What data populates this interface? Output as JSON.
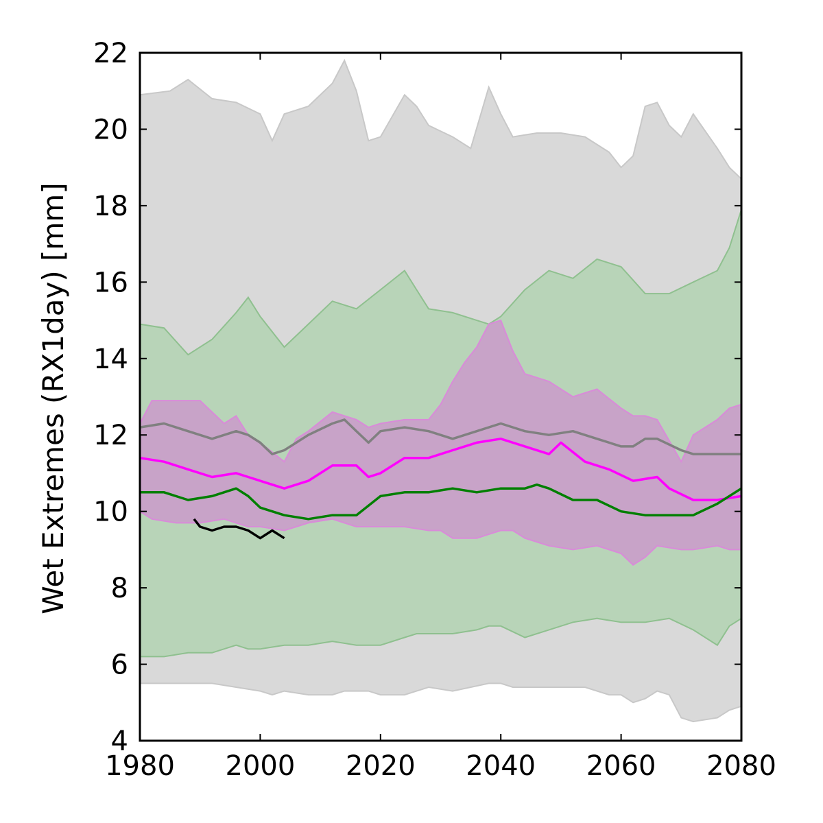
{
  "chart_data": {
    "type": "area",
    "xlabel": "",
    "ylabel": "Wet Extremes (RX1day) [mm]",
    "xlim": [
      1980,
      2080
    ],
    "ylim": [
      4,
      22
    ],
    "xticks": [
      1980,
      2000,
      2020,
      2040,
      2060,
      2080
    ],
    "yticks": [
      4,
      6,
      8,
      10,
      12,
      14,
      16,
      18,
      20,
      22
    ],
    "grid": false,
    "legend": "none",
    "bands": [
      {
        "color": "#d9d9d9",
        "edge_color": "#c8c8c8",
        "x": [
          1980,
          1985,
          1988,
          1992,
          1996,
          2000,
          2002,
          2004,
          2008,
          2012,
          2014,
          2016,
          2018,
          2020,
          2024,
          2026,
          2028,
          2032,
          2035,
          2038,
          2040,
          2042,
          2046,
          2050,
          2054,
          2058,
          2060,
          2062,
          2064,
          2066,
          2068,
          2070,
          2072,
          2076,
          2078,
          2080
        ],
        "upper": [
          20.9,
          21.0,
          21.3,
          20.8,
          20.7,
          20.4,
          19.7,
          20.4,
          20.6,
          21.2,
          21.8,
          21.0,
          19.7,
          19.8,
          20.9,
          20.6,
          20.1,
          19.8,
          19.5,
          21.1,
          20.4,
          19.8,
          19.9,
          19.9,
          19.8,
          19.4,
          19.0,
          19.3,
          20.6,
          20.7,
          20.1,
          19.8,
          20.4,
          19.5,
          19.0,
          18.7
        ],
        "lower": [
          5.5,
          5.5,
          5.5,
          5.5,
          5.4,
          5.3,
          5.2,
          5.3,
          5.2,
          5.2,
          5.3,
          5.3,
          5.3,
          5.2,
          5.2,
          5.3,
          5.4,
          5.3,
          5.4,
          5.5,
          5.5,
          5.4,
          5.4,
          5.4,
          5.4,
          5.2,
          5.2,
          5.0,
          5.1,
          5.3,
          5.2,
          4.6,
          4.5,
          4.6,
          4.8,
          4.9
        ]
      },
      {
        "color": "#b8d4b8",
        "edge_color": "#8fc08f",
        "x": [
          1980,
          1984,
          1988,
          1992,
          1996,
          1998,
          2000,
          2004,
          2008,
          2012,
          2016,
          2020,
          2024,
          2026,
          2028,
          2032,
          2036,
          2038,
          2040,
          2044,
          2048,
          2052,
          2056,
          2060,
          2064,
          2068,
          2072,
          2076,
          2078,
          2080
        ],
        "upper": [
          14.9,
          14.8,
          14.1,
          14.5,
          15.2,
          15.6,
          15.1,
          14.3,
          14.9,
          15.5,
          15.3,
          15.8,
          16.3,
          15.8,
          15.3,
          15.2,
          15.0,
          14.9,
          15.1,
          15.8,
          16.3,
          16.1,
          16.6,
          16.4,
          15.7,
          15.7,
          16.0,
          16.3,
          16.9,
          17.9
        ],
        "lower": [
          6.2,
          6.2,
          6.3,
          6.3,
          6.5,
          6.4,
          6.4,
          6.5,
          6.5,
          6.6,
          6.5,
          6.5,
          6.7,
          6.8,
          6.8,
          6.8,
          6.9,
          7.0,
          7.0,
          6.7,
          6.9,
          7.1,
          7.2,
          7.1,
          7.1,
          7.2,
          6.9,
          6.5,
          7.0,
          7.2
        ]
      },
      {
        "color": "#c8a3c8",
        "edge_color": "#d98bd9",
        "x": [
          1980,
          1982,
          1986,
          1990,
          1994,
          1996,
          1998,
          2000,
          2004,
          2006,
          2008,
          2012,
          2016,
          2018,
          2020,
          2024,
          2028,
          2030,
          2032,
          2034,
          2036,
          2038,
          2040,
          2042,
          2044,
          2048,
          2052,
          2056,
          2060,
          2062,
          2064,
          2066,
          2070,
          2072,
          2076,
          2078,
          2080
        ],
        "upper": [
          12.3,
          12.9,
          12.9,
          12.9,
          12.3,
          12.5,
          12.0,
          11.8,
          11.3,
          11.9,
          12.1,
          12.6,
          12.4,
          12.2,
          12.3,
          12.4,
          12.4,
          12.8,
          13.4,
          13.9,
          14.3,
          14.9,
          15.0,
          14.2,
          13.6,
          13.4,
          13.0,
          13.2,
          12.7,
          12.5,
          12.5,
          12.4,
          11.3,
          12.0,
          12.4,
          12.7,
          12.8
        ],
        "lower": [
          10.0,
          9.8,
          9.7,
          9.7,
          9.8,
          9.7,
          9.6,
          9.6,
          9.5,
          9.6,
          9.7,
          9.8,
          9.6,
          9.6,
          9.6,
          9.6,
          9.5,
          9.5,
          9.3,
          9.3,
          9.3,
          9.4,
          9.5,
          9.5,
          9.3,
          9.1,
          9.0,
          9.1,
          8.9,
          8.6,
          8.8,
          9.1,
          9.0,
          9.0,
          9.1,
          9.0,
          9.0
        ]
      }
    ],
    "series": [
      {
        "color": "#808080",
        "x": [
          1980,
          1984,
          1988,
          1992,
          1996,
          1998,
          2000,
          2002,
          2004,
          2008,
          2012,
          2014,
          2016,
          2018,
          2020,
          2024,
          2028,
          2032,
          2036,
          2040,
          2044,
          2048,
          2052,
          2056,
          2060,
          2062,
          2064,
          2066,
          2070,
          2072,
          2076,
          2080
        ],
        "values": [
          12.2,
          12.3,
          12.1,
          11.9,
          12.1,
          12.0,
          11.8,
          11.5,
          11.6,
          12.0,
          12.3,
          12.4,
          12.1,
          11.8,
          12.1,
          12.2,
          12.1,
          11.9,
          12.1,
          12.3,
          12.1,
          12.0,
          12.1,
          11.9,
          11.7,
          11.7,
          11.9,
          11.9,
          11.6,
          11.5,
          11.5,
          11.5
        ]
      },
      {
        "color": "#ff00ff",
        "x": [
          1980,
          1984,
          1988,
          1992,
          1996,
          1998,
          2000,
          2004,
          2008,
          2012,
          2016,
          2018,
          2020,
          2024,
          2028,
          2032,
          2036,
          2040,
          2044,
          2048,
          2050,
          2054,
          2058,
          2062,
          2066,
          2068,
          2072,
          2076,
          2080
        ],
        "values": [
          11.4,
          11.3,
          11.1,
          10.9,
          11.0,
          10.9,
          10.8,
          10.6,
          10.8,
          11.2,
          11.2,
          10.9,
          11.0,
          11.4,
          11.4,
          11.6,
          11.8,
          11.9,
          11.7,
          11.5,
          11.8,
          11.3,
          11.1,
          10.8,
          10.9,
          10.6,
          10.3,
          10.3,
          10.4
        ]
      },
      {
        "color": "#007f00",
        "x": [
          1980,
          1984,
          1988,
          1992,
          1996,
          1998,
          2000,
          2004,
          2008,
          2012,
          2016,
          2020,
          2024,
          2028,
          2032,
          2036,
          2040,
          2044,
          2046,
          2048,
          2052,
          2056,
          2060,
          2064,
          2068,
          2072,
          2076,
          2080
        ],
        "values": [
          10.5,
          10.5,
          10.3,
          10.4,
          10.6,
          10.4,
          10.1,
          9.9,
          9.8,
          9.9,
          9.9,
          10.4,
          10.5,
          10.5,
          10.6,
          10.5,
          10.6,
          10.6,
          10.7,
          10.6,
          10.3,
          10.3,
          10.0,
          9.9,
          9.9,
          9.9,
          10.2,
          10.6
        ]
      },
      {
        "color": "#000000",
        "x": [
          1989,
          1990,
          1992,
          1994,
          1996,
          1998,
          2000,
          2002,
          2004
        ],
        "values": [
          9.8,
          9.6,
          9.5,
          9.6,
          9.6,
          9.5,
          9.3,
          9.5,
          9.3
        ]
      }
    ]
  }
}
